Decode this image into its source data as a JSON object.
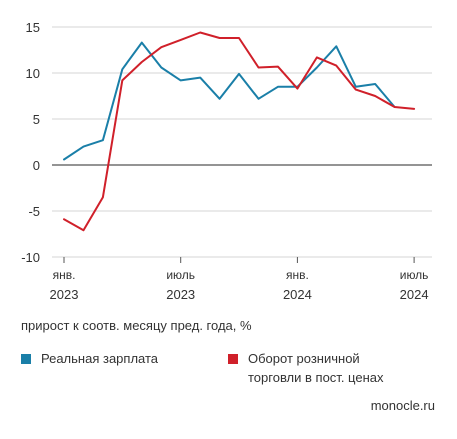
{
  "chart_data": {
    "type": "line",
    "x": [
      "2023-01",
      "2023-02",
      "2023-03",
      "2023-04",
      "2023-05",
      "2023-06",
      "2023-07",
      "2023-08",
      "2023-09",
      "2023-10",
      "2023-11",
      "2023-12",
      "2024-01",
      "2024-02",
      "2024-03",
      "2024-04",
      "2024-05",
      "2024-06",
      "2024-07"
    ],
    "series": [
      {
        "name": "Реальная зарплата",
        "color": "#1a7fa8",
        "values": [
          0.6,
          2.0,
          2.7,
          10.4,
          13.3,
          10.6,
          9.2,
          9.5,
          7.2,
          9.9,
          7.2,
          8.5,
          8.5,
          10.6,
          12.9,
          8.5,
          8.8,
          6.3,
          null
        ]
      },
      {
        "name": "Оборот розничной торговли в пост. ценах",
        "color": "#d0202a",
        "values": [
          -5.9,
          -7.1,
          -3.5,
          9.2,
          11.2,
          12.8,
          13.6,
          14.4,
          13.8,
          13.8,
          10.6,
          10.7,
          8.3,
          11.7,
          10.8,
          8.2,
          7.5,
          6.3,
          6.1
        ]
      }
    ],
    "xticks": [
      {
        "month": "янв.",
        "year": "2023",
        "index": 0
      },
      {
        "month": "июль",
        "year": "2023",
        "index": 6
      },
      {
        "month": "янв.",
        "year": "2024",
        "index": 12
      },
      {
        "month": "июль",
        "year": "2024",
        "index": 18
      }
    ],
    "yticks": [
      "15",
      "10",
      "5",
      "0",
      "-5",
      "-10"
    ],
    "ylim": [
      -10,
      15
    ],
    "grid": true,
    "caption": "прирост к соотв. месяцу пред. года, %",
    "source": "monocle.ru"
  },
  "legend": [
    {
      "label": "Реальная зарплата",
      "color": "#1a7fa8"
    },
    {
      "label": "Оборот розничной торговли в пост. ценах",
      "color": "#d0202a"
    }
  ]
}
